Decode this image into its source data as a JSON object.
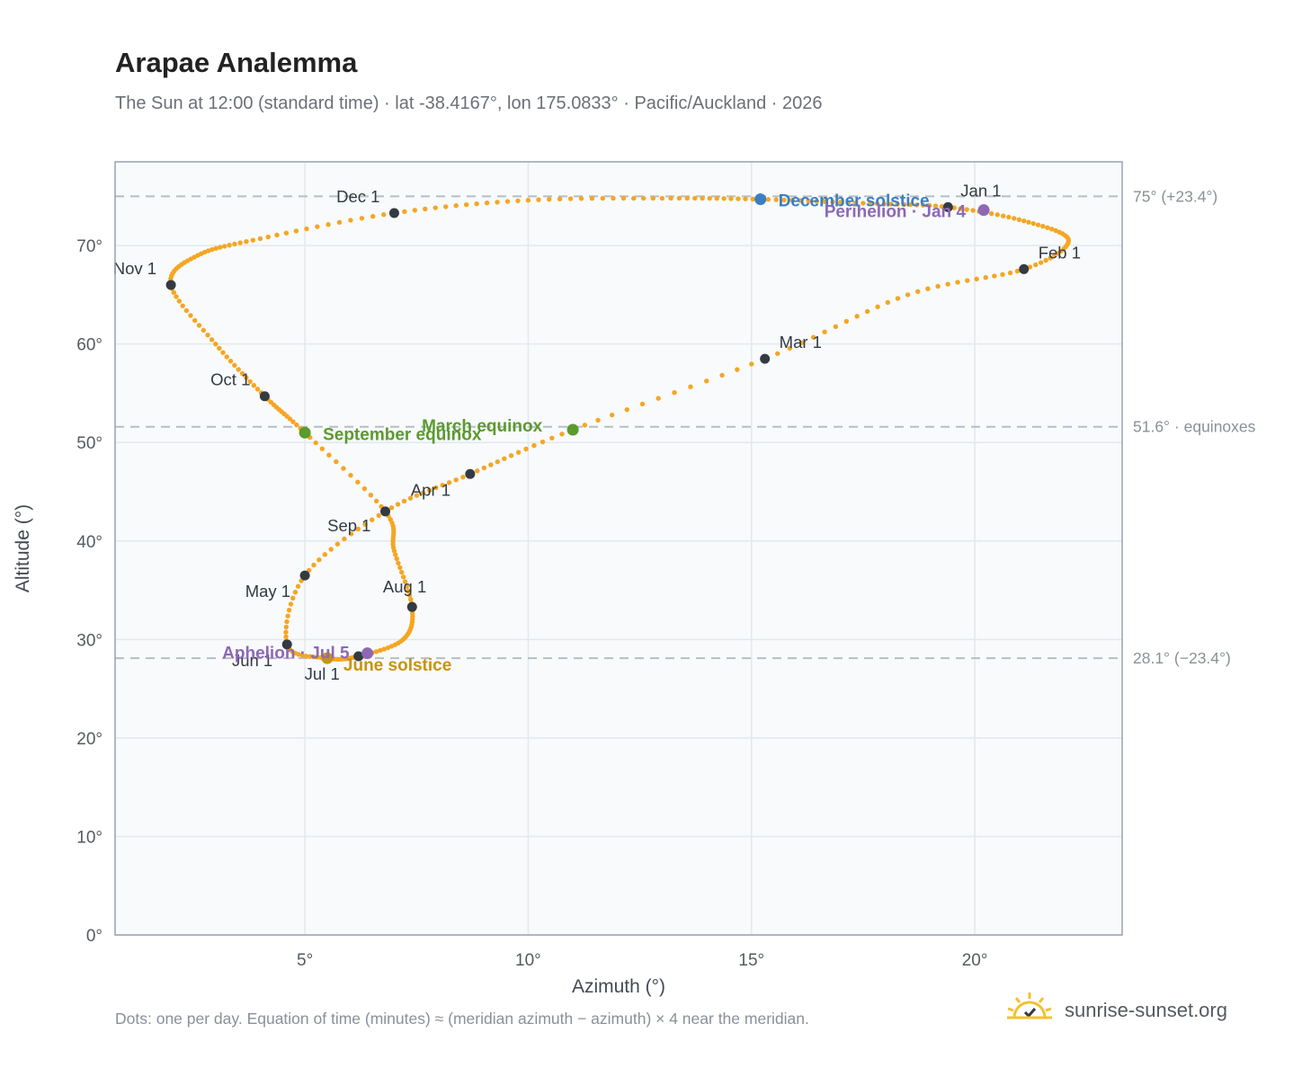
{
  "title": "Arapae Analemma",
  "subtitle": "The Sun at 12:00 (standard time) · lat -38.4167°, lon 175.0833° · Pacific/Auckland · 2026",
  "footnote": "Dots: one per day. Equation of time (minutes) ≈ (meridian azimuth − azimuth) × 4 near the meridian.",
  "brand": {
    "name": "sunrise-sunset.org",
    "logo_icon": "sun-check-icon"
  },
  "colors": {
    "path": "#f5a623",
    "month_marker": "#333a42",
    "equinox": "#5a9a2e",
    "solstice_december": "#3c7ec2",
    "solstice_june": "#c9930e",
    "apsis": "#8e68b5",
    "reference_line": "#b5bec7",
    "grid": "#e4e8ee",
    "plot_bg": "#f8fafc",
    "axis": "#98a2b0"
  },
  "chart_data": {
    "type": "scatter",
    "xlabel": "Azimuth (°)",
    "ylabel": "Altitude (°)",
    "xlim": [
      0.75,
      23.3
    ],
    "ylim": [
      0,
      78.5
    ],
    "x_ticks": [
      {
        "value": 5,
        "label": "5°"
      },
      {
        "value": 10,
        "label": "10°"
      },
      {
        "value": 15,
        "label": "15°"
      },
      {
        "value": 20,
        "label": "20°"
      }
    ],
    "y_ticks": [
      {
        "value": 0,
        "label": "0°"
      },
      {
        "value": 10,
        "label": "10°"
      },
      {
        "value": 20,
        "label": "20°"
      },
      {
        "value": 30,
        "label": "30°"
      },
      {
        "value": 40,
        "label": "40°"
      },
      {
        "value": 50,
        "label": "50°"
      },
      {
        "value": 60,
        "label": "60°"
      },
      {
        "value": 70,
        "label": "70°"
      }
    ],
    "grid": true,
    "reference_lines": [
      {
        "y": 75.0,
        "label": "75° (+23.4°)"
      },
      {
        "y": 51.6,
        "label": "51.6° · equinoxes"
      },
      {
        "y": 28.1,
        "label": "28.1° (−23.4°)"
      }
    ],
    "daily_path": [
      [
        19.4,
        73.9
      ],
      [
        21.1,
        72.5
      ],
      [
        22.1,
        70.5
      ],
      [
        21.1,
        67.6
      ],
      [
        18.5,
        65.0
      ],
      [
        15.3,
        58.5
      ],
      [
        11.0,
        51.3
      ],
      [
        8.7,
        46.8
      ],
      [
        6.8,
        43.0
      ],
      [
        5.0,
        36.5
      ],
      [
        4.6,
        29.5
      ],
      [
        5.5,
        28.1
      ],
      [
        6.2,
        28.3
      ],
      [
        7.2,
        30.0
      ],
      [
        7.4,
        33.3
      ],
      [
        7.0,
        39.0
      ],
      [
        6.8,
        43.0
      ],
      [
        5.0,
        51.0
      ],
      [
        4.1,
        54.7
      ],
      [
        3.0,
        60.0
      ],
      [
        2.0,
        66.0
      ],
      [
        2.6,
        69.0
      ],
      [
        4.0,
        70.7
      ],
      [
        7.0,
        73.3
      ],
      [
        10.0,
        74.6
      ],
      [
        13.0,
        74.8
      ],
      [
        15.2,
        74.7
      ],
      [
        17.5,
        74.3
      ],
      [
        19.4,
        73.9
      ]
    ],
    "month_markers": [
      {
        "label": "Jan 1",
        "x": 19.4,
        "y": 73.9
      },
      {
        "label": "Feb 1",
        "x": 21.1,
        "y": 67.6
      },
      {
        "label": "Mar 1",
        "x": 15.3,
        "y": 58.5
      },
      {
        "label": "Apr 1",
        "x": 8.7,
        "y": 46.8
      },
      {
        "label": "May 1",
        "x": 5.0,
        "y": 36.5
      },
      {
        "label": "Jun 1",
        "x": 4.6,
        "y": 29.5
      },
      {
        "label": "Jul 1",
        "x": 6.2,
        "y": 28.3
      },
      {
        "label": "Aug 1",
        "x": 7.4,
        "y": 33.3
      },
      {
        "label": "Sep 1",
        "x": 6.8,
        "y": 43.0
      },
      {
        "label": "Oct 1",
        "x": 4.1,
        "y": 54.7
      },
      {
        "label": "Nov 1",
        "x": 2.0,
        "y": 66.0
      },
      {
        "label": "Dec 1",
        "x": 7.0,
        "y": 73.3
      }
    ],
    "events": [
      {
        "label": "March equinox",
        "x": 11.0,
        "y": 51.3,
        "color_key": "equinox"
      },
      {
        "label": "September equinox",
        "x": 5.0,
        "y": 51.0,
        "color_key": "equinox"
      },
      {
        "label": "December solstice",
        "x": 15.2,
        "y": 74.7,
        "color_key": "solstice_december"
      },
      {
        "label": "June solstice",
        "x": 5.5,
        "y": 28.1,
        "color_key": "solstice_june"
      },
      {
        "label": "Perihelion · Jan 4",
        "x": 20.2,
        "y": 73.6,
        "color_key": "apsis"
      },
      {
        "label": "Aphelion · Jul 5",
        "x": 6.4,
        "y": 28.6,
        "color_key": "apsis"
      }
    ]
  }
}
